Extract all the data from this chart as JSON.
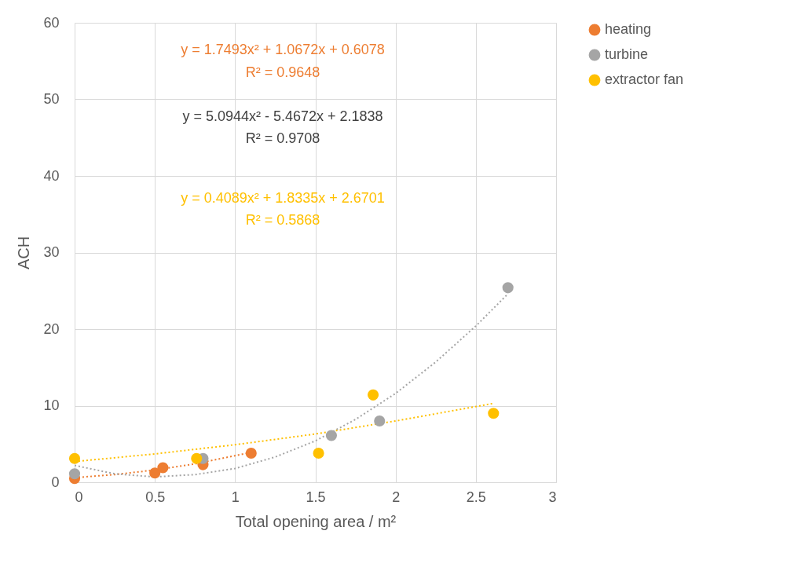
{
  "chart_data": {
    "type": "scatter",
    "xlabel": "Total opening area / m²",
    "ylabel": "ACH",
    "xlim": [
      0,
      3
    ],
    "xticks": [
      0,
      0.5,
      1,
      1.5,
      2,
      2.5,
      3
    ],
    "ylim": [
      0,
      60
    ],
    "yticks": [
      0,
      10,
      20,
      30,
      40,
      50,
      60
    ],
    "grid": true,
    "legend": "right",
    "series": [
      {
        "name": "heating",
        "color": "#ed7d31",
        "marker": "circle",
        "x": [
          0,
          0.5,
          0.55,
          0.8,
          1.1
        ],
        "values": [
          0.5,
          1.2,
          1.9,
          2.3,
          3.8
        ]
      },
      {
        "name": "turbine",
        "color": "#a5a5a5",
        "marker": "circle",
        "x": [
          0,
          0.8,
          1.6,
          1.9,
          2.7
        ],
        "values": [
          1.1,
          3.1,
          6.1,
          8.0,
          25.4
        ]
      },
      {
        "name": "extractor fan",
        "color": "#ffc000",
        "marker": "circle",
        "x": [
          0,
          0.76,
          1.52,
          1.86,
          2.61
        ],
        "values": [
          3.1,
          3.1,
          3.8,
          11.4,
          9.0
        ]
      },
      {
        "type": "line",
        "line_style": "dotted",
        "color": "#ed7d31",
        "x": [
          0,
          0.25,
          0.5,
          0.75,
          1.1
        ],
        "values": [
          0.6,
          1.0,
          1.6,
          2.4,
          3.9
        ]
      },
      {
        "type": "line",
        "line_style": "dotted",
        "color": "#a5a5a5",
        "x": [
          0,
          0.25,
          0.5,
          0.75,
          1.0,
          1.25,
          1.5,
          1.75,
          2.0,
          2.25,
          2.5,
          2.7
        ],
        "values": [
          2.2,
          1.1,
          0.7,
          1.0,
          1.8,
          3.3,
          5.4,
          8.2,
          11.6,
          15.7,
          20.4,
          24.6
        ]
      },
      {
        "type": "line",
        "line_style": "dotted",
        "color": "#ffc000",
        "x": [
          0,
          0.5,
          1,
          1.5,
          2,
          2.61
        ],
        "values": [
          2.7,
          3.7,
          4.9,
          6.3,
          8.0,
          10.3
        ]
      }
    ],
    "annotations": [
      "y = 1.7493x² + 1.0672x + 0.6078",
      "R² = 0.9648",
      "y = 5.0944x² - 5.4672x + 2.1838",
      "R² = 0.9708",
      "y = 0.4089x² + 1.8335x + 2.6701",
      "R² = 0.5868"
    ]
  }
}
